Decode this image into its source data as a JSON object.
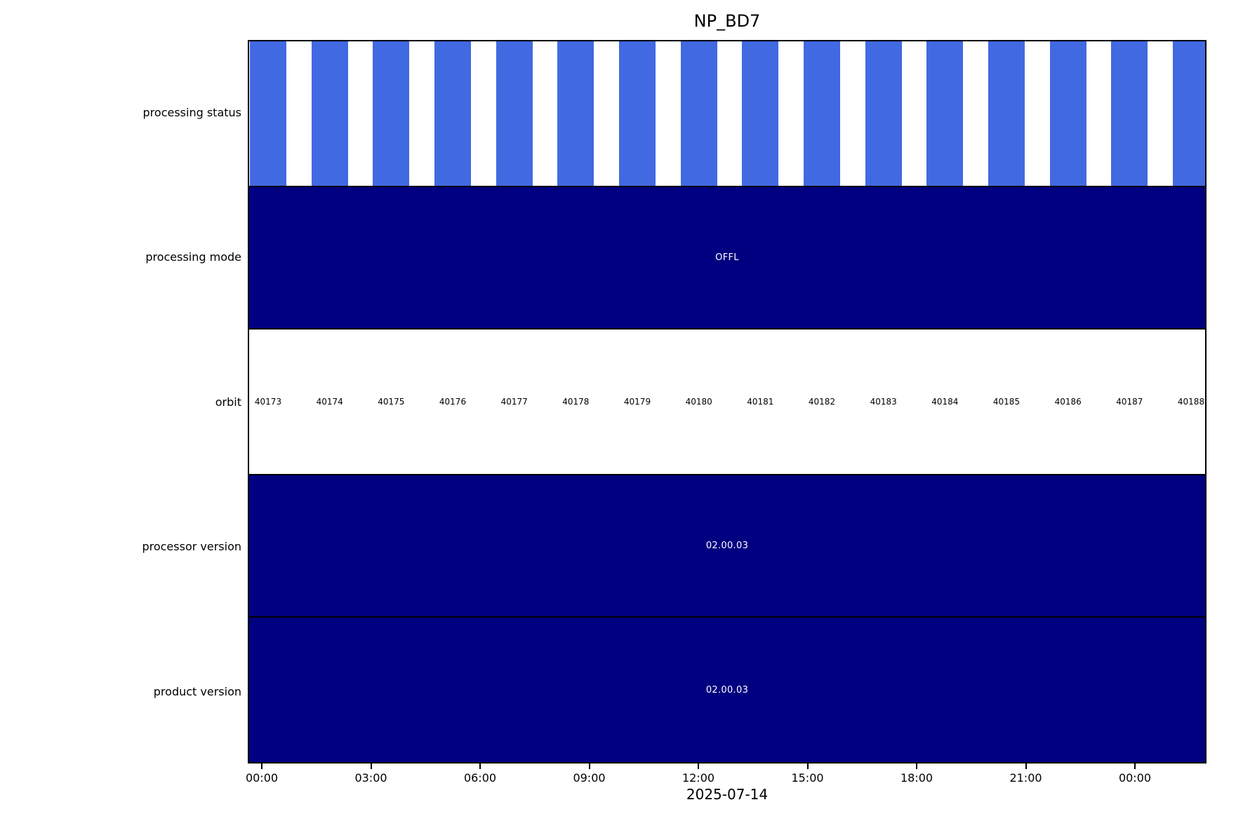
{
  "chart_data": {
    "type": "timeline",
    "title": "NP_BD7",
    "date_label": "2025-07-14",
    "x_tick_labels": [
      "00:00",
      "03:00",
      "06:00",
      "09:00",
      "12:00",
      "15:00",
      "18:00",
      "21:00",
      "00:00"
    ],
    "x_tick_hours": [
      0,
      3,
      6,
      9,
      12,
      15,
      18,
      21,
      24
    ],
    "grid": false,
    "legend": "none",
    "colors": {
      "status_bar_blue": "#4169E1",
      "block_navy": "#000080",
      "block_text_white": "#ffffff",
      "axis_black": "#000000",
      "background": "#ffffff"
    },
    "orbits": [
      40173,
      40174,
      40175,
      40176,
      40177,
      40178,
      40179,
      40180,
      40181,
      40182,
      40183,
      40184,
      40185,
      40186,
      40187,
      40188
    ],
    "rows": [
      {
        "label": "processing status",
        "kind": "bars",
        "bar_color": "#4169E1",
        "bar_count": 16,
        "note": "one blue bar per orbit, aligned with orbit numbers"
      },
      {
        "label": "processing mode",
        "kind": "block",
        "block_color": "#000080",
        "text": "OFFL"
      },
      {
        "label": "orbit",
        "kind": "labels",
        "values": [
          "40173",
          "40174",
          "40175",
          "40176",
          "40177",
          "40178",
          "40179",
          "40180",
          "40181",
          "40182",
          "40183",
          "40184",
          "40185",
          "40186",
          "40187",
          "40188"
        ]
      },
      {
        "label": "processor version",
        "kind": "block",
        "block_color": "#000080",
        "text": "02.00.03"
      },
      {
        "label": "product version",
        "kind": "block",
        "block_color": "#000080",
        "text": "02.00.03"
      }
    ]
  }
}
